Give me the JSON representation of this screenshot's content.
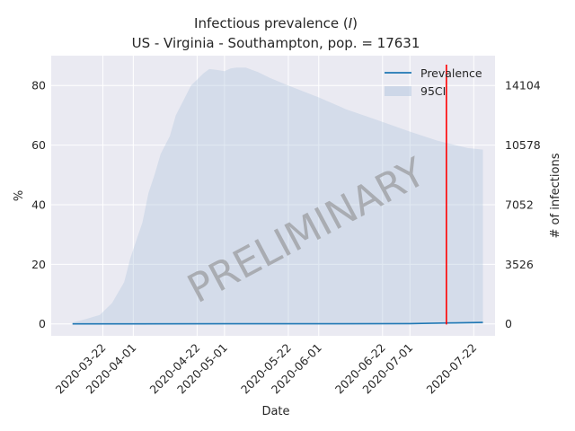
{
  "chart_data": {
    "type": "area",
    "title": "Infectious prevalence (I)",
    "title_prefix": "Infectious prevalence (",
    "title_var": "I",
    "title_suffix": ")",
    "subtitle": "US - Virginia - Southampton, pop. = 17631",
    "xlabel": "Date",
    "ylabel": "%",
    "y2label": "# of infections",
    "ylim": [
      -4,
      90
    ],
    "yticks": [
      0,
      20,
      40,
      60,
      80
    ],
    "y2ticks": [
      {
        "label": "0",
        "value": 0
      },
      {
        "label": "3526",
        "value": 20
      },
      {
        "label": "7052",
        "value": 40
      },
      {
        "label": "10578",
        "value": 60
      },
      {
        "label": "14104",
        "value": 80
      }
    ],
    "xlim": [
      "2020-03-05",
      "2020-07-29"
    ],
    "xticks": [
      "2020-03-22",
      "2020-04-01",
      "2020-04-22",
      "2020-05-01",
      "2020-05-22",
      "2020-06-01",
      "2020-06-22",
      "2020-07-01",
      "2020-07-22"
    ],
    "grid": true,
    "legend": {
      "position": "top-right",
      "entries": [
        "Prevalence",
        "95CI"
      ]
    },
    "watermark": "PRELIMINARY",
    "vline": {
      "x": "2020-07-13",
      "color": "#ff0000"
    },
    "series": [
      {
        "name": "Prevalence",
        "color": "#1f77b4",
        "x": [
          "2020-03-12",
          "2020-04-01",
          "2020-05-01",
          "2020-06-01",
          "2020-07-01",
          "2020-07-13",
          "2020-07-25"
        ],
        "values": [
          0,
          0,
          0.05,
          0.05,
          0.1,
          0.3,
          0.5
        ]
      },
      {
        "name": "95CI",
        "color": "#b0c4de",
        "x": [
          "2020-03-12",
          "2020-03-16",
          "2020-03-21",
          "2020-03-25",
          "2020-03-29",
          "2020-03-31",
          "2020-04-02",
          "2020-04-04",
          "2020-04-06",
          "2020-04-08",
          "2020-04-10",
          "2020-04-13",
          "2020-04-15",
          "2020-04-18",
          "2020-04-20",
          "2020-04-22",
          "2020-04-24",
          "2020-04-26",
          "2020-04-28",
          "2020-05-01",
          "2020-05-03",
          "2020-05-05",
          "2020-05-08",
          "2020-05-12",
          "2020-05-16",
          "2020-05-22",
          "2020-06-01",
          "2020-06-10",
          "2020-06-20",
          "2020-07-01",
          "2020-07-10",
          "2020-07-20",
          "2020-07-25"
        ],
        "lower": [
          0,
          0,
          0,
          0,
          0,
          0,
          0,
          0,
          0,
          0,
          0,
          0,
          0,
          0,
          0,
          0,
          0,
          0,
          0,
          0,
          0,
          0,
          0,
          0,
          0,
          0,
          0,
          0,
          0,
          0,
          0,
          0,
          0
        ],
        "upper": [
          0.5,
          1.5,
          3,
          7,
          14,
          22,
          28,
          34,
          44,
          50,
          57,
          63,
          70,
          76,
          80,
          82,
          84,
          85.5,
          85.3,
          84.8,
          85.7,
          86,
          86,
          84.5,
          82.5,
          80,
          76,
          72,
          68.5,
          64.5,
          61.5,
          59,
          58.5
        ]
      }
    ]
  }
}
